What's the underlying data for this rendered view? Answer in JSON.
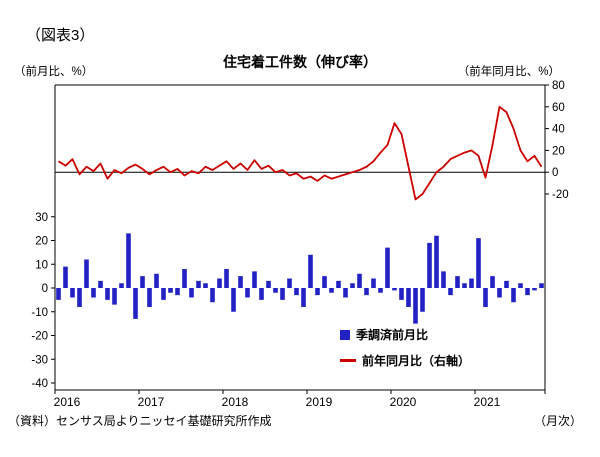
{
  "figure_label": "（図表3）",
  "title": "住宅着工件数（伸び率）",
  "left_axis_label": "（前月比、%）",
  "right_axis_label": "（前年同月比、%）",
  "source": "（資料）センサス局よりニッセイ基礎研究所作成",
  "frequency_note": "（月次）",
  "legend": {
    "bars": "季調済前月比",
    "line": "前年同月比（右軸）"
  },
  "colors": {
    "bar": "#2222c4",
    "line": "#cc0000",
    "axis": "#000000"
  },
  "chart_data": {
    "type": "combo",
    "title": "住宅着工件数（伸び率）",
    "frequency": "monthly",
    "x_start": "2016-01",
    "x_end": "2021-10",
    "x_tick_labels": [
      "2016",
      "2017",
      "2018",
      "2019",
      "2020",
      "2021"
    ],
    "left_axis": {
      "label": "（前月比、%）",
      "ticks": [
        30,
        20,
        10,
        0,
        -10,
        -20,
        -30,
        -40
      ],
      "range": [
        -43,
        86
      ]
    },
    "right_axis": {
      "label": "（前年同月比、%）",
      "ticks": [
        80,
        60,
        40,
        20,
        0,
        -20
      ],
      "range": [
        -200,
        80
      ]
    },
    "grid": false,
    "legend_position": "inside lower right",
    "series": [
      {
        "name": "季調済前月比",
        "type": "bar",
        "axis": "left",
        "color": "#2222c4",
        "values": [
          -5,
          9,
          -4,
          -8,
          12,
          -4,
          3,
          -5,
          -7,
          2,
          23,
          -13,
          5,
          -8,
          6,
          -5,
          -2,
          -3,
          8,
          -4,
          3,
          2,
          -6,
          4,
          8,
          -10,
          5,
          -4,
          7,
          -5,
          3,
          -2,
          -5,
          4,
          -3,
          -8,
          14,
          -3,
          5,
          -2,
          3,
          -4,
          2,
          6,
          -3,
          4,
          -2,
          17,
          -1,
          -5,
          -8,
          -15,
          -10,
          19,
          22,
          7,
          -3,
          5,
          2,
          4,
          21,
          -8,
          5,
          -4,
          3,
          -6,
          2,
          -3,
          -1,
          2
        ]
      },
      {
        "name": "前年同月比（右軸）",
        "type": "line",
        "axis": "right",
        "color": "#cc0000",
        "values": [
          10,
          6,
          12,
          -2,
          5,
          1,
          8,
          -6,
          2,
          -1,
          4,
          7,
          3,
          -2,
          2,
          5,
          0,
          3,
          -3,
          1,
          -1,
          5,
          2,
          6,
          10,
          3,
          8,
          2,
          11,
          3,
          6,
          0,
          2,
          -3,
          -1,
          -6,
          -4,
          -8,
          -3,
          -6,
          -4,
          -2,
          0,
          2,
          5,
          10,
          18,
          25,
          45,
          35,
          5,
          -25,
          -20,
          -10,
          0,
          5,
          12,
          15,
          18,
          20,
          15,
          -5,
          25,
          60,
          55,
          40,
          20,
          10,
          15,
          5
        ]
      }
    ]
  }
}
